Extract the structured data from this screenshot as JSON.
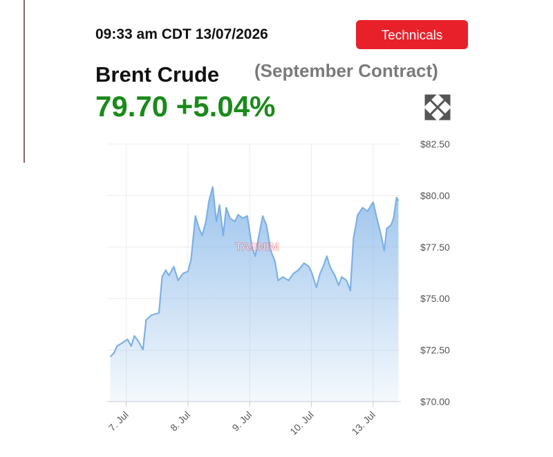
{
  "header": {
    "timestamp": "09:33 am CDT 13/07/2026",
    "button": "Technicals",
    "name": "Brent Crude",
    "contract": "(September Contract)",
    "price": "79.70",
    "change": "+5.04%",
    "watermark": "TASNIM"
  },
  "chart_data": {
    "type": "area",
    "color": "#7cb0e6",
    "grid": true,
    "x": [
      -0.26,
      -0.2,
      -0.15,
      -0.06,
      0.02,
      0.08,
      0.13,
      0.19,
      0.27,
      0.32,
      0.41,
      0.53,
      0.58,
      0.64,
      0.69,
      0.77,
      0.84,
      0.92,
      1.0,
      1.05,
      1.12,
      1.18,
      1.23,
      1.29,
      1.34,
      1.4,
      1.46,
      1.51,
      1.57,
      1.62,
      1.68,
      1.76,
      1.81,
      1.89,
      1.96,
      2.04,
      2.09,
      2.15,
      2.21,
      2.27,
      2.34,
      2.41,
      2.46,
      2.54,
      2.63,
      2.71,
      2.79,
      2.88,
      2.96,
      3.01,
      3.08,
      3.14,
      3.19,
      3.25,
      3.3,
      3.38,
      3.44,
      3.49,
      3.57,
      3.63,
      3.68,
      3.75,
      3.83,
      3.91,
      4.0,
      4.06,
      4.13,
      4.18,
      4.22,
      4.29,
      4.33,
      4.38,
      4.41
    ],
    "values": [
      72.18,
      72.35,
      72.69,
      72.86,
      73.02,
      72.69,
      73.19,
      72.96,
      72.52,
      73.96,
      74.2,
      74.3,
      76.05,
      76.38,
      76.12,
      76.55,
      75.88,
      76.22,
      76.32,
      76.89,
      79.01,
      78.4,
      78.06,
      78.74,
      79.74,
      80.42,
      78.74,
      79.54,
      78.06,
      79.41,
      78.9,
      78.74,
      79.07,
      78.9,
      79.01,
      77.46,
      77.06,
      78.06,
      79.01,
      78.57,
      77.33,
      76.79,
      75.88,
      76.05,
      75.88,
      76.22,
      76.38,
      76.72,
      76.55,
      76.22,
      75.54,
      76.22,
      76.55,
      77.06,
      76.55,
      76.12,
      75.65,
      76.05,
      75.88,
      75.38,
      77.9,
      79.07,
      79.41,
      79.24,
      79.68,
      78.9,
      78.06,
      77.33,
      78.4,
      78.57,
      78.9,
      79.91,
      79.74
    ],
    "xlim": [
      -0.31,
      4.45
    ],
    "xticks": [
      {
        "value": 0,
        "label": "7. Jul"
      },
      {
        "value": 1,
        "label": "8. Jul"
      },
      {
        "value": 2,
        "label": "9. Jul"
      },
      {
        "value": 3,
        "label": "10. Jul"
      },
      {
        "value": 4,
        "label": "13. Jul"
      }
    ],
    "ylim": [
      70,
      82.5
    ],
    "yticks": [
      {
        "value": 70,
        "label": "$70.00"
      },
      {
        "value": 72.5,
        "label": "$72.50"
      },
      {
        "value": 75,
        "label": "$75.00"
      },
      {
        "value": 77.5,
        "label": "$77.50"
      },
      {
        "value": 80,
        "label": "$80.00"
      },
      {
        "value": 82.5,
        "label": "$82.50"
      }
    ]
  }
}
